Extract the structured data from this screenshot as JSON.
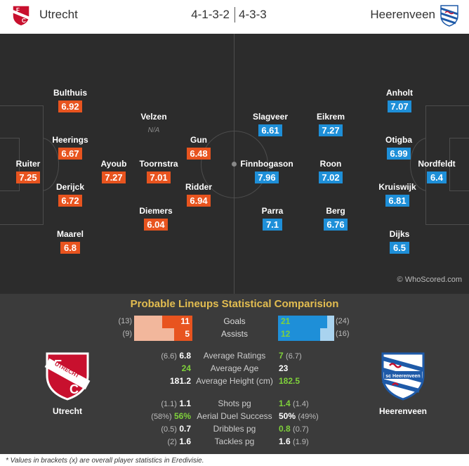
{
  "header": {
    "home_team": "Utrecht",
    "away_team": "Heerenveen",
    "home_formation": "4-1-3-2",
    "away_formation": "4-3-3"
  },
  "pitch": {
    "credit": "© WhoScored.com",
    "home_players": [
      {
        "name": "Bulthuis",
        "rating": "6.92"
      },
      {
        "name": "Heerings",
        "rating": "6.67"
      },
      {
        "name": "Ruiter",
        "rating": "7.25"
      },
      {
        "name": "Derijck",
        "rating": "6.72"
      },
      {
        "name": "Maarel",
        "rating": "6.8"
      },
      {
        "name": "Velzen",
        "rating": "N/A"
      },
      {
        "name": "Ayoub",
        "rating": "7.27"
      },
      {
        "name": "Toornstra",
        "rating": "7.01"
      },
      {
        "name": "Diemers",
        "rating": "6.04"
      },
      {
        "name": "Gun",
        "rating": "6.48"
      },
      {
        "name": "Ridder",
        "rating": "6.94"
      }
    ],
    "away_players": [
      {
        "name": "Slagveer",
        "rating": "6.61"
      },
      {
        "name": "Eikrem",
        "rating": "7.27"
      },
      {
        "name": "Finnbogason",
        "rating": "7.96"
      },
      {
        "name": "Roon",
        "rating": "7.02"
      },
      {
        "name": "Parra",
        "rating": "7.1"
      },
      {
        "name": "Berg",
        "rating": "6.76"
      },
      {
        "name": "Anholt",
        "rating": "7.07"
      },
      {
        "name": "Otigba",
        "rating": "6.99"
      },
      {
        "name": "Nordfeldt",
        "rating": "6.4"
      },
      {
        "name": "Kruiswijk",
        "rating": "6.81"
      },
      {
        "name": "Dijks",
        "rating": "6.5"
      }
    ]
  },
  "stats": {
    "title": "Probable Lineups Statistical Comparision",
    "home_name": "Utrecht",
    "away_name": "Heerenveen",
    "goals": {
      "label": "Goals",
      "home": "11",
      "home_overall": "(13)",
      "away": "21",
      "away_overall": "(24)",
      "home_fill": 0.52,
      "away_fill": 0.88
    },
    "assists": {
      "label": "Assists",
      "home": "5",
      "home_overall": "(9)",
      "away": "12",
      "away_overall": "(16)",
      "home_fill": 0.31,
      "away_fill": 0.75
    },
    "rows": [
      {
        "label": "Average Ratings",
        "home_br": "(6.6)",
        "home": "6.8",
        "away": "7",
        "away_br": "(6.7)",
        "winner": "away"
      },
      {
        "label": "Average Age",
        "home_br": "",
        "home": "24",
        "away": "23",
        "away_br": "",
        "winner": "home"
      },
      {
        "label": "Average Height (cm)",
        "home_br": "",
        "home": "181.2",
        "away": "182.5",
        "away_br": "",
        "winner": "away"
      },
      {
        "label": "Shots pg",
        "home_br": "(1.1)",
        "home": "1.1",
        "away": "1.4",
        "away_br": "(1.4)",
        "winner": "away"
      },
      {
        "label": "Aerial Duel Success",
        "home_br": "(58%)",
        "home": "56%",
        "away": "50%",
        "away_br": "(49%)",
        "winner": "home"
      },
      {
        "label": "Dribbles pg",
        "home_br": "(0.5)",
        "home": "0.7",
        "away": "0.8",
        "away_br": "(0.7)",
        "winner": "away"
      },
      {
        "label": "Tackles pg",
        "home_br": "(2)",
        "home": "1.6",
        "away": "1.6",
        "away_br": "(1.9)",
        "winner": "none"
      }
    ]
  },
  "footnote": "* Values in brackets (x) are overall player statistics in Eredivisie.",
  "colors": {
    "home": "#e8541f",
    "away": "#1e8fd8",
    "highlight": "#7fd13b",
    "title": "#e3bd50"
  },
  "icons": {
    "home": "utrecht-crest-icon",
    "away": "heerenveen-crest-icon"
  }
}
